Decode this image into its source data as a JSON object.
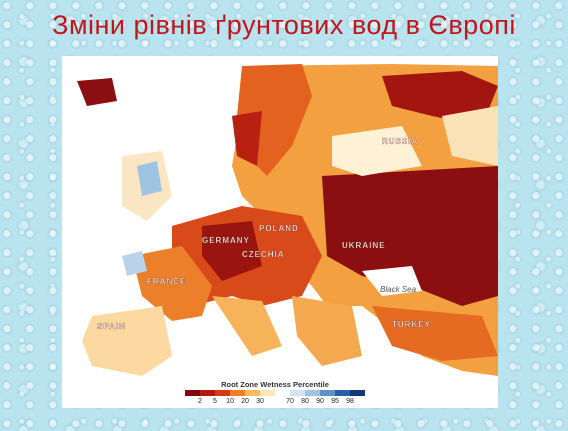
{
  "title": "Зміни рівнів ґрунтових вод в Європі",
  "map": {
    "labels": [
      "RUSSIA",
      "GERMANY",
      "POLAND",
      "CZECHIA",
      "UKRAINE",
      "FRANCE",
      "SPAIN",
      "TURKEY",
      "Black Sea"
    ],
    "legend": {
      "title": "Root Zone Wetness Percentile",
      "ticks": [
        2,
        5,
        10,
        20,
        30,
        70,
        80,
        90,
        95,
        98
      ]
    }
  }
}
